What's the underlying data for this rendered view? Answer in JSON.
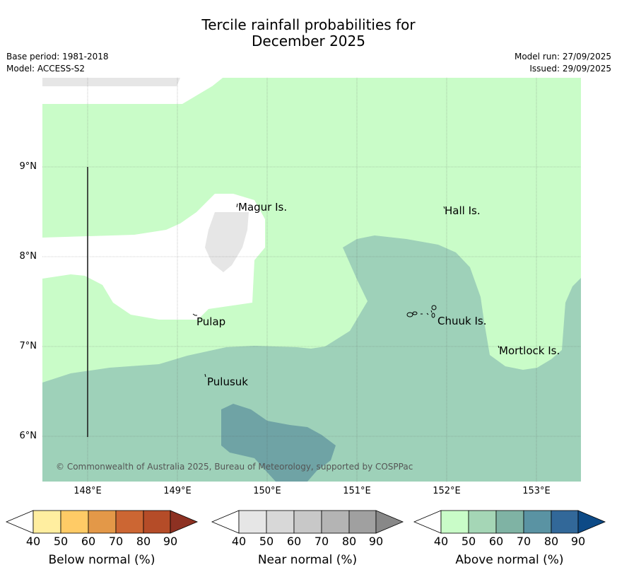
{
  "title_line1": "Tercile rainfall probabilities for",
  "title_line2": "December 2025",
  "meta_left": {
    "base_period": "Base period: 1981-2018",
    "model": "Model: ACCESS-S2"
  },
  "meta_right": {
    "model_run": "Model run: 27/09/2025",
    "issued": "Issued: 29/09/2025"
  },
  "map": {
    "y_labels": [
      "9°N",
      "8°N",
      "7°N",
      "6°N"
    ],
    "x_labels": [
      "148°E",
      "149°E",
      "150°E",
      "151°E",
      "152°E",
      "153°E"
    ],
    "places": {
      "magur": "Magur Is.",
      "hall": "Hall Is.",
      "pulap": "Pulap",
      "chuuk": "Chuuk Is.",
      "mortlock": "Mortlock Is.",
      "pulusuk": "Pulusuk"
    },
    "copyright": "© Commonwealth of Australia 2025, Bureau of Meteorology, supported by COSPPac",
    "colors": {
      "above_50": "#c9fcc8",
      "above_60": "#9ed1b9",
      "above_70": "#6fa3a5",
      "near_40": "#e6e6e6",
      "background": "#ffffff"
    }
  },
  "colorbars": {
    "below": {
      "label": "Below normal (%)",
      "ticks": [
        "40",
        "50",
        "60",
        "70",
        "80",
        "90"
      ],
      "colors": [
        "#ffeea0",
        "#ffcb66",
        "#e39848",
        "#cc6633",
        "#b54c28",
        "#8d3122"
      ]
    },
    "near": {
      "label": "Near normal (%)",
      "ticks": [
        "40",
        "50",
        "60",
        "70",
        "80",
        "90"
      ],
      "colors": [
        "#e6e6e6",
        "#d8d8d8",
        "#c8c8c8",
        "#b4b4b4",
        "#a0a0a0",
        "#888888"
      ]
    },
    "above": {
      "label": "Above normal (%)",
      "ticks": [
        "40",
        "50",
        "60",
        "70",
        "80",
        "90"
      ],
      "colors": [
        "#c9fcc8",
        "#a5d6b6",
        "#7fb3a4",
        "#5a93a3",
        "#326899",
        "#0d4a86"
      ]
    }
  }
}
